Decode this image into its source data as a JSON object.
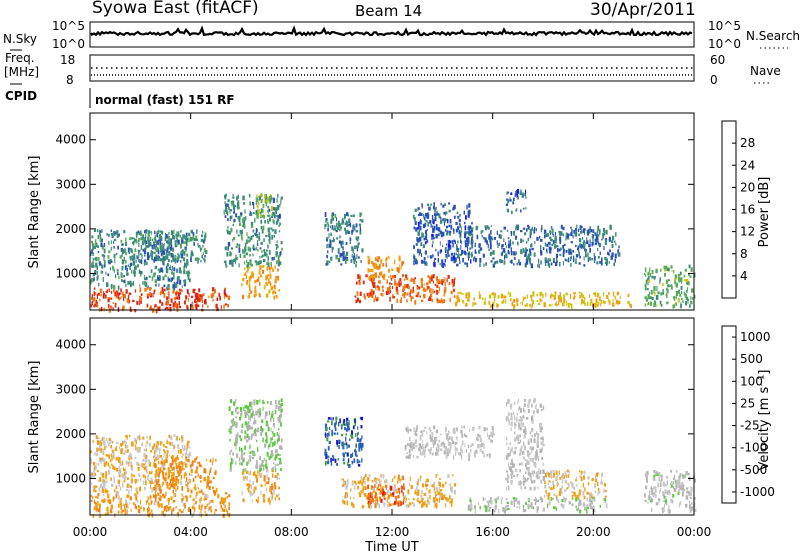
{
  "header": {
    "title": "Syowa East (fitACF)",
    "beam": "Beam 14",
    "date": "30/Apr/2011"
  },
  "panels": {
    "nsky": {
      "label": "N.Sky",
      "ticks": [
        "10^5",
        "10^0"
      ],
      "right_label": "N.Search",
      "right_ticks": [
        "10^5",
        "10^0"
      ]
    },
    "freq": {
      "label_line1": "Freq.",
      "label_line2": "[MHz]",
      "ticks": [
        "18",
        "8"
      ],
      "right_label": "Nave",
      "right_ticks": [
        "60",
        "0"
      ]
    },
    "cpid": {
      "label": "CPID",
      "value": "normal (fast) 151 RF"
    }
  },
  "axes": {
    "ylabel": "Slant Range [km]",
    "xlabel": "Time UT",
    "yticks": [
      "1000",
      "2000",
      "3000",
      "4000"
    ],
    "xticks": [
      "00:00",
      "04:00",
      "08:00",
      "12:00",
      "16:00",
      "20:00",
      "00:00"
    ]
  },
  "colorbars": {
    "power": {
      "label": "Power [dB]",
      "ticks": [
        "4",
        "8",
        "12",
        "16",
        "20",
        "24",
        "28"
      ],
      "colors": [
        "#1414f0",
        "#2850b4",
        "#3c8c78",
        "#5aaa5a",
        "#c8c80a",
        "#f0a014",
        "#f07814",
        "#e02a14",
        "#d8130f"
      ]
    },
    "velocity": {
      "label": "Velocity [m s⁻¹]",
      "ticks": [
        "1000",
        "500",
        "100",
        "25",
        "-25",
        "-100",
        "-500",
        "-1000"
      ],
      "colors": [
        "#1414c8",
        "#2a64b4",
        "#3ca03c",
        "#5ac83c",
        "#b4b4b4",
        "#c8c8c8",
        "#f0a014",
        "#f08214",
        "#f05a14",
        "#e01414"
      ]
    }
  },
  "chart_data": [
    {
      "type": "heatmap",
      "title": "Power",
      "xlabel": "Time UT",
      "ylabel": "Slant Range [km]",
      "xlim": [
        "00:00",
        "24:00"
      ],
      "ylim": [
        180,
        4600
      ],
      "colorbar_label": "Power [dB]",
      "colorbar_range": [
        0,
        32
      ],
      "regions": [
        {
          "t": [
            0.0,
            5.5
          ],
          "r": [
            200,
            700
          ],
          "value": 26
        },
        {
          "t": [
            0.0,
            4.0
          ],
          "r": [
            700,
            2000
          ],
          "value": 9
        },
        {
          "t": [
            1.8,
            4.6
          ],
          "r": [
            1300,
            2000
          ],
          "value": 8
        },
        {
          "t": [
            5.3,
            7.6
          ],
          "r": [
            1200,
            2800
          ],
          "value": 9
        },
        {
          "t": [
            6.5,
            7.2
          ],
          "r": [
            2300,
            2800
          ],
          "value": 14
        },
        {
          "t": [
            6.0,
            7.5
          ],
          "r": [
            500,
            1200
          ],
          "value": 20
        },
        {
          "t": [
            9.3,
            10.8
          ],
          "r": [
            1200,
            2400
          ],
          "value": 8
        },
        {
          "t": [
            10.5,
            14.5
          ],
          "r": [
            400,
            1000
          ],
          "value": 24
        },
        {
          "t": [
            11.0,
            12.5
          ],
          "r": [
            900,
            1400
          ],
          "value": 22
        },
        {
          "t": [
            12.8,
            15.2
          ],
          "r": [
            1200,
            2600
          ],
          "value": 6
        },
        {
          "t": [
            15.0,
            21.0
          ],
          "r": [
            1200,
            2100
          ],
          "value": 7
        },
        {
          "t": [
            16.5,
            17.3
          ],
          "r": [
            2400,
            2900
          ],
          "value": 6
        },
        {
          "t": [
            14.5,
            21.5
          ],
          "r": [
            300,
            600
          ],
          "value": 18
        },
        {
          "t": [
            22.0,
            24.0
          ],
          "r": [
            300,
            1200
          ],
          "value": 12
        }
      ]
    },
    {
      "type": "heatmap",
      "title": "Velocity",
      "xlabel": "Time UT",
      "ylabel": "Slant Range [km]",
      "xlim": [
        "00:00",
        "24:00"
      ],
      "ylim": [
        180,
        4600
      ],
      "colorbar_label": "Velocity [m s⁻¹]",
      "colorbar_range": [
        -1000,
        1000
      ],
      "regions": [
        {
          "t": [
            0.0,
            5.5
          ],
          "r": [
            200,
            700
          ],
          "value": -350
        },
        {
          "t": [
            0.0,
            4.0
          ],
          "r": [
            700,
            2000
          ],
          "value": -200
        },
        {
          "t": [
            2.5,
            5.0
          ],
          "r": [
            700,
            1500
          ],
          "value": -420
        },
        {
          "t": [
            5.5,
            7.6
          ],
          "r": [
            1200,
            2800
          ],
          "value": 200
        },
        {
          "t": [
            6.0,
            7.5
          ],
          "r": [
            500,
            1200
          ],
          "value": -300
        },
        {
          "t": [
            9.3,
            10.8
          ],
          "r": [
            1300,
            2400
          ],
          "value": 700
        },
        {
          "t": [
            10.0,
            14.5
          ],
          "r": [
            400,
            1100
          ],
          "value": -250
        },
        {
          "t": [
            11.0,
            12.5
          ],
          "r": [
            400,
            900
          ],
          "value": -700
        },
        {
          "t": [
            12.5,
            16.0
          ],
          "r": [
            1500,
            2200
          ],
          "value": 0
        },
        {
          "t": [
            16.5,
            18.0
          ],
          "r": [
            800,
            2800
          ],
          "value": 0
        },
        {
          "t": [
            15.0,
            20.5
          ],
          "r": [
            300,
            600
          ],
          "value": 80
        },
        {
          "t": [
            18.0,
            20.5
          ],
          "r": [
            600,
            1200
          ],
          "value": -200
        },
        {
          "t": [
            22.0,
            24.0
          ],
          "r": [
            300,
            1200
          ],
          "value": 60
        }
      ]
    }
  ]
}
